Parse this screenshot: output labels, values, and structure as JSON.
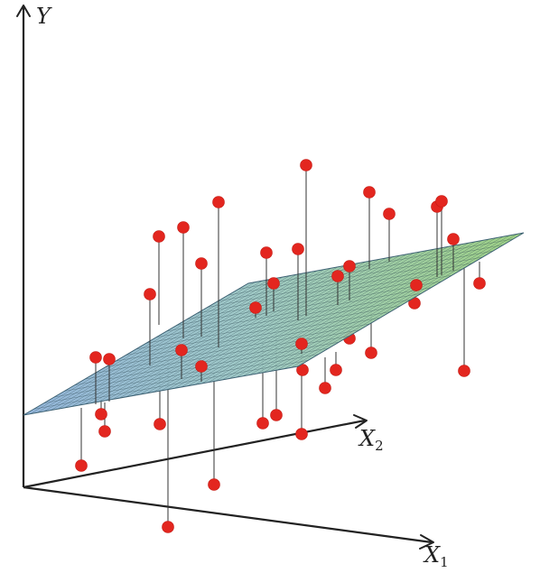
{
  "axes": {
    "y_label": "Y",
    "x2_label": "X",
    "x2_sub": "2",
    "x1_label": "X",
    "x1_sub": "1"
  },
  "colors": {
    "point": "#e3261f",
    "plane_low": "#8fb3db",
    "plane_high": "#9bd17e",
    "axis": "#222222"
  },
  "observations_count": 40
}
